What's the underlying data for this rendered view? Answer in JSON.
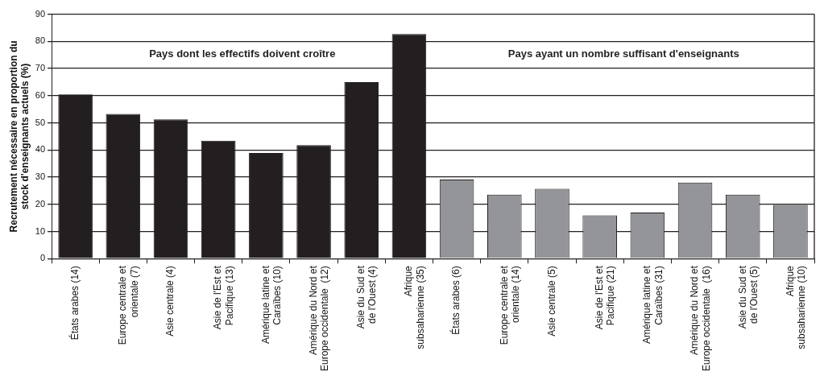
{
  "chart_data": {
    "type": "bar",
    "ylabel": "Recrutement nécessaire en proportion du\nstock d'enseignants actuels (%)",
    "categories": [
      "États arabes (14)",
      "Europe centrale et\norientale (7)",
      "Asie centrale (4)",
      "Asie de l'Est et\nPacifique (13)",
      "Amérique latine et\nCaraïbes (10)",
      "Amérique du Nord et\nEurope occidentale  (12)",
      "Asie du Sud et\nde l'Ouest (4)",
      "Afrique\nsubsaharienne (35)",
      "États arabes (6)",
      "Europe centrale et\norientale (14)",
      "Asie centrale (5)",
      "Asie de l'Est et\nPacifique (21)",
      "Amérique latine et\nCaraïbes (31)",
      "Amérique du Nord et\nEurope occidentale  (16)",
      "Asie du Sud et\nde l'Ouest (5)",
      "Afrique\nsubsaharienne (10)"
    ],
    "values": [
      60.5,
      53.3,
      51.3,
      43.4,
      38.9,
      41.8,
      65.0,
      82.7,
      29.1,
      23.6,
      25.7,
      15.9,
      17.0,
      28.0,
      23.6,
      19.8
    ],
    "colors": [
      "#231f20",
      "#231f20",
      "#231f20",
      "#231f20",
      "#231f20",
      "#231f20",
      "#231f20",
      "#231f20",
      "#939598",
      "#939598",
      "#939598",
      "#939598",
      "#939598",
      "#939598",
      "#939598",
      "#939598"
    ],
    "ylim": [
      0,
      90
    ],
    "yticks": [
      0,
      10,
      20,
      30,
      40,
      50,
      60,
      70,
      80,
      90
    ],
    "grid": "y",
    "legend": false,
    "annotations": [
      "Pays dont les effectifs doivent croître",
      "Pays ayant un nombre suffisant d'enseignants"
    ]
  }
}
